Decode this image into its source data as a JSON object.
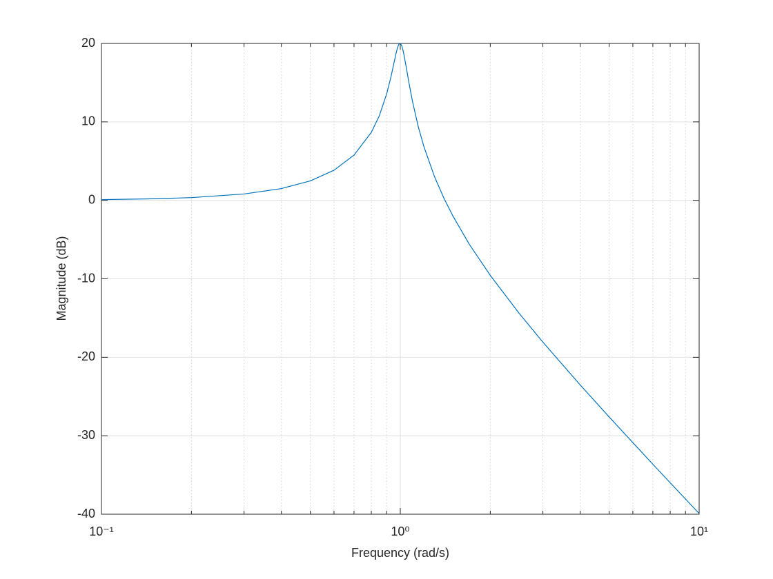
{
  "chart_data": {
    "type": "line",
    "xlabel": "Frequency (rad/s)",
    "ylabel": "Magnitude (dB)",
    "x": [
      0.1,
      0.15,
      0.2,
      0.3,
      0.4,
      0.5,
      0.6,
      0.7,
      0.8,
      0.85,
      0.9,
      0.93,
      0.95,
      0.97,
      0.98,
      0.99,
      1.0,
      1.01,
      1.02,
      1.03,
      1.05,
      1.07,
      1.1,
      1.15,
      1.2,
      1.3,
      1.4,
      1.5,
      1.7,
      2,
      2.5,
      3,
      4,
      5,
      6,
      7,
      8,
      10
    ],
    "values": [
      0.09,
      0.2,
      0.35,
      0.81,
      1.5,
      2.48,
      3.84,
      5.77,
      8.67,
      10.75,
      13.55,
      15.7,
      17.32,
      18.89,
      19.52,
      19.92,
      20.0,
      19.75,
      19.2,
      18.44,
      16.67,
      14.89,
      12.5,
      9.31,
      6.82,
      3.07,
      0.26,
      -2.0,
      -5.57,
      -9.56,
      -14.41,
      -18.07,
      -23.53,
      -27.61,
      -30.88,
      -33.63,
      -35.99,
      -39.91
    ],
    "color": "#0072bd",
    "xscale": "log",
    "xlim": [
      0.1,
      10
    ],
    "ylim": [
      -40,
      20
    ],
    "xticks": [
      {
        "value": 0.1,
        "label": "10⁻¹"
      },
      {
        "value": 1,
        "label": "10⁰"
      },
      {
        "value": 10,
        "label": "10¹"
      }
    ],
    "xminorticks": [
      0.2,
      0.3,
      0.4,
      0.5,
      0.6,
      0.7,
      0.8,
      0.9,
      2,
      3,
      4,
      5,
      6,
      7,
      8,
      9
    ],
    "yticks": [
      -40,
      -30,
      -20,
      -10,
      0,
      10,
      20
    ],
    "grid": true
  }
}
